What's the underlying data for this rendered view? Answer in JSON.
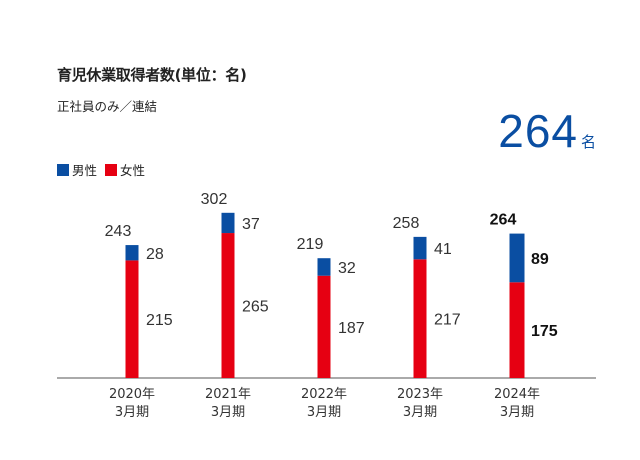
{
  "title": "育児休業取得者数",
  "title_unit": "(単位：名)",
  "subtitle": "正社員のみ／連結",
  "total": {
    "value": "264",
    "suffix": "名"
  },
  "legend": [
    {
      "label": "男性",
      "color": "#0a4ea2"
    },
    {
      "label": "女性",
      "color": "#e60012"
    }
  ],
  "chart_data": {
    "type": "bar",
    "stacked": true,
    "categories": [
      [
        "2020年",
        "3月期"
      ],
      [
        "2021年",
        "3月期"
      ],
      [
        "2022年",
        "3月期"
      ],
      [
        "2023年",
        "3月期"
      ],
      [
        "2024年",
        "3月期"
      ]
    ],
    "series": [
      {
        "name": "女性",
        "color": "#e60012",
        "values": [
          215,
          265,
          187,
          217,
          175
        ]
      },
      {
        "name": "男性",
        "color": "#0a4ea2",
        "values": [
          28,
          37,
          32,
          41,
          89
        ]
      }
    ],
    "totals": [
      243,
      302,
      219,
      258,
      264
    ],
    "highlight_index": 4,
    "ylim": [
      0,
      302
    ],
    "grid": false,
    "legend_position": "top-left"
  }
}
